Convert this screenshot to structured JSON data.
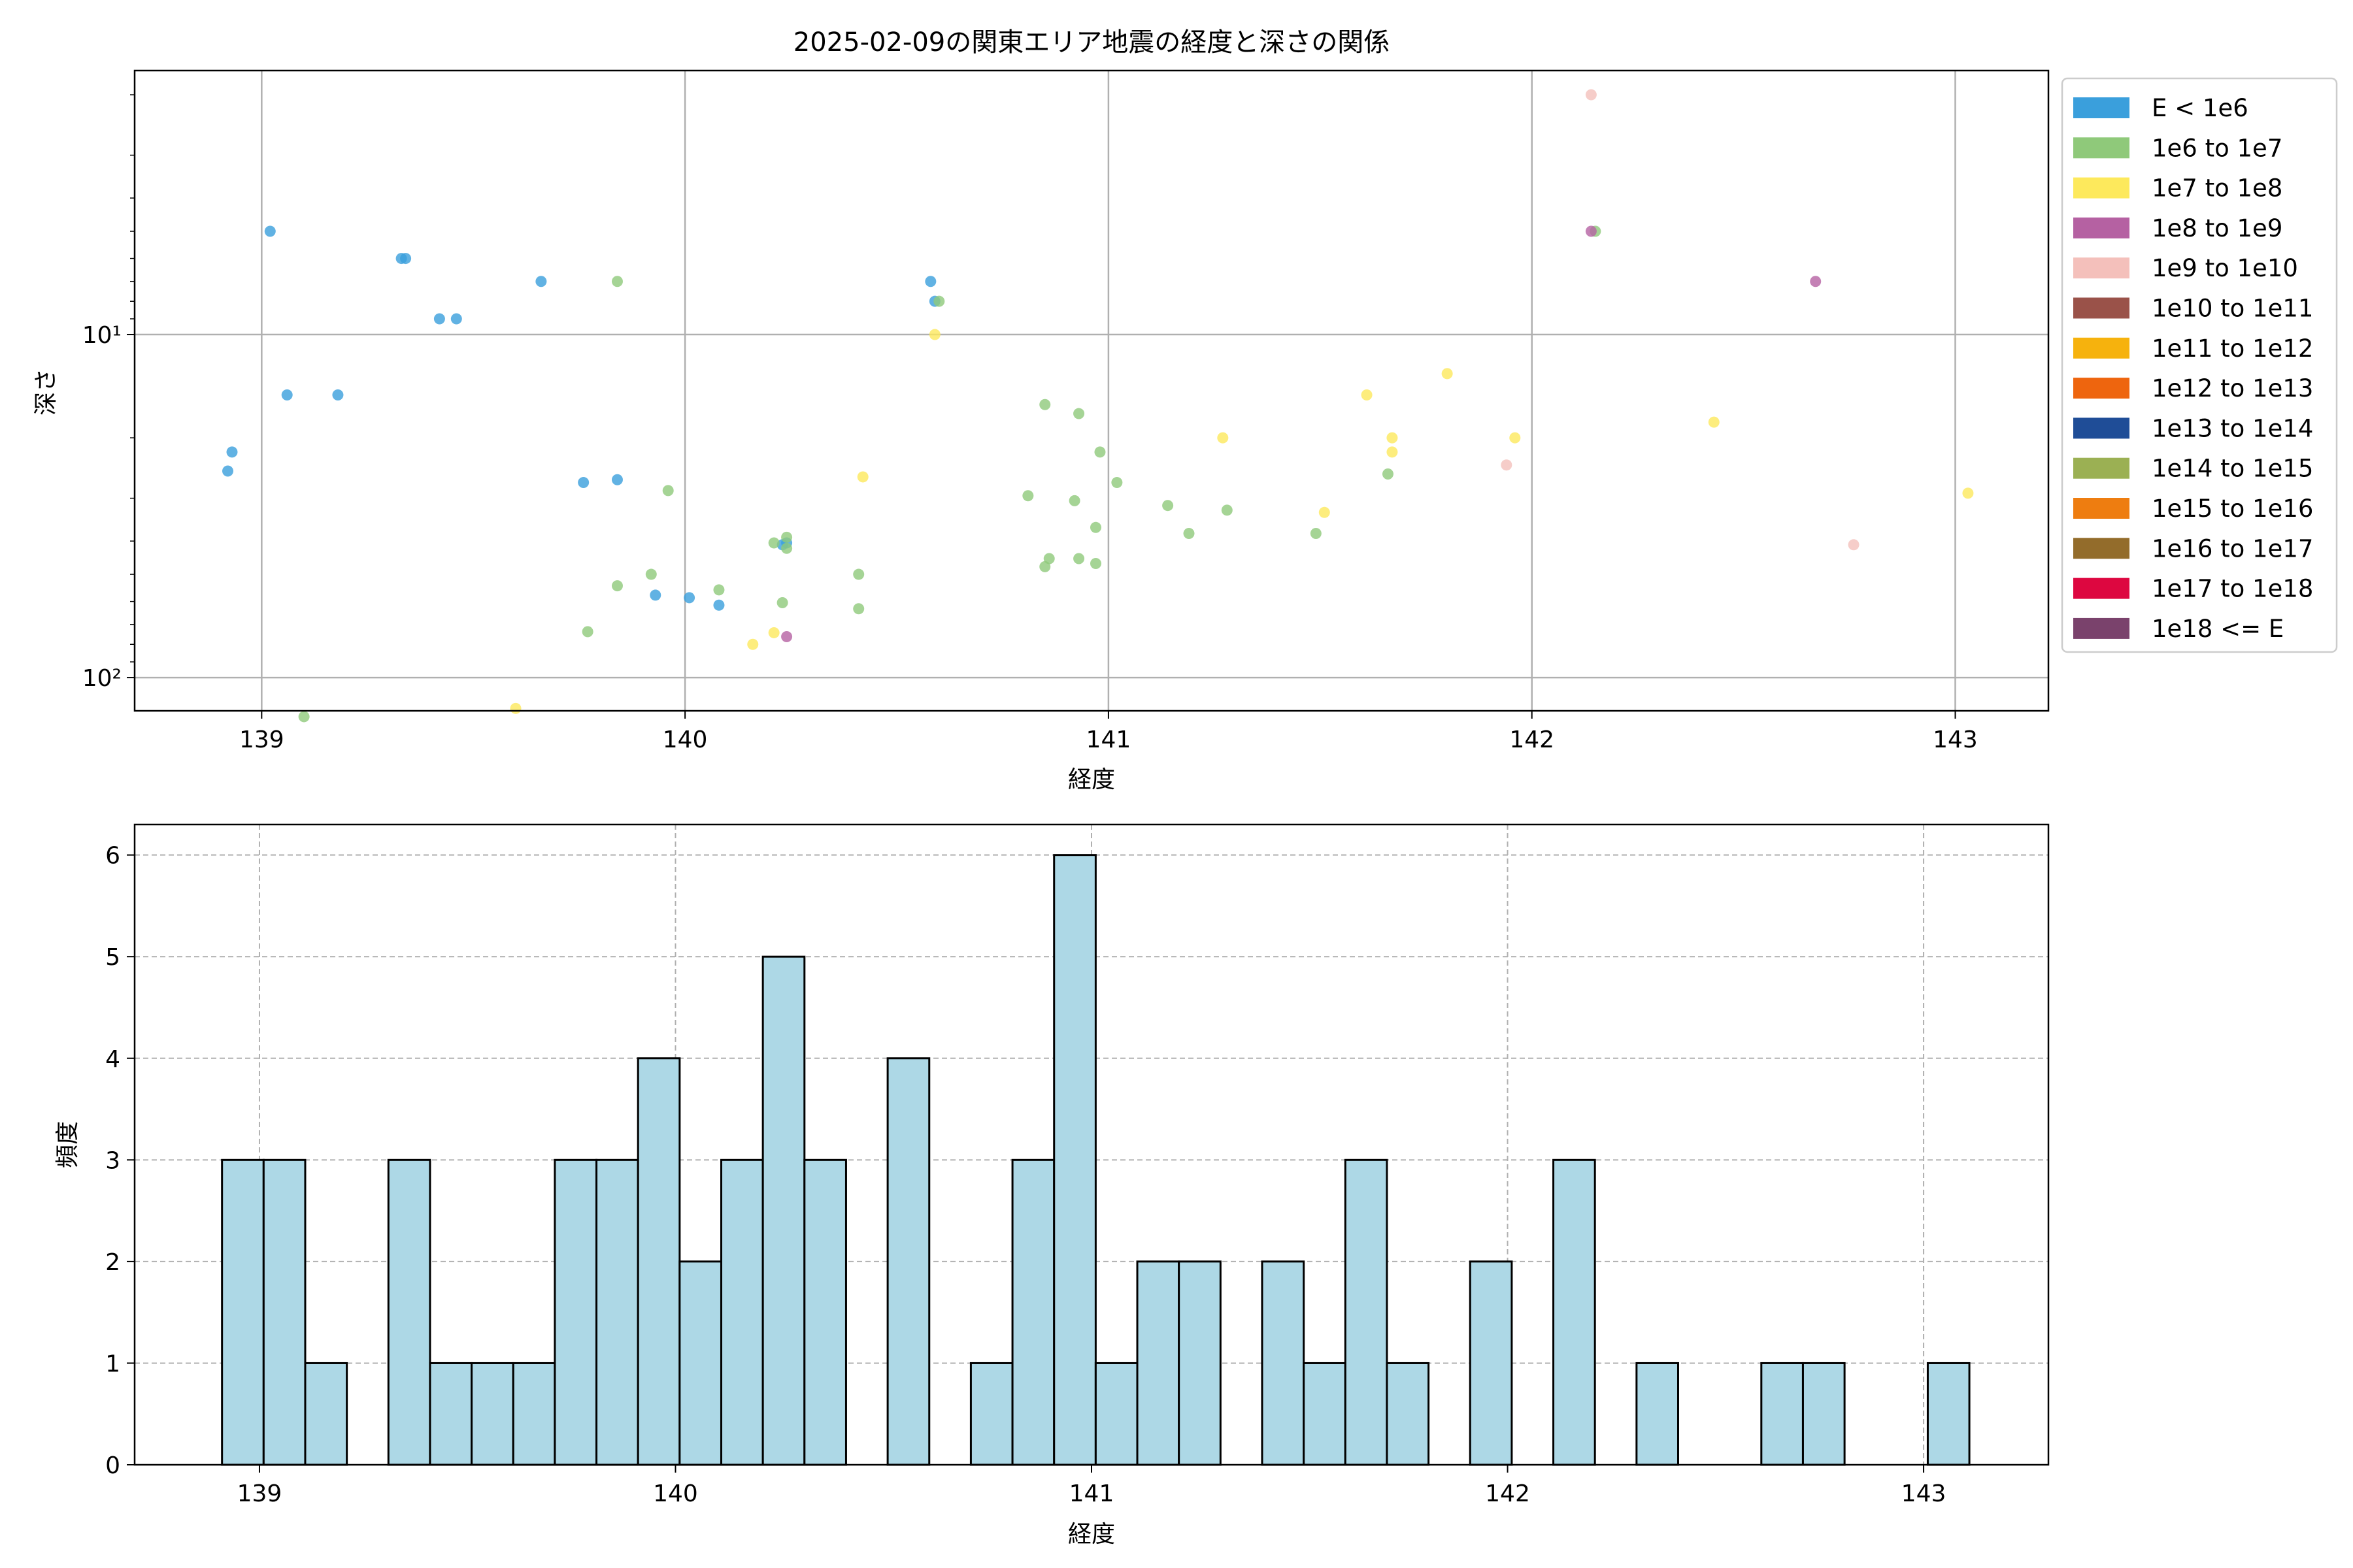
{
  "chart_data": [
    {
      "type": "scatter",
      "title": "2025-02-09の関東エリア地震の経度と深さの関係",
      "xlabel": "経度",
      "ylabel": "深さ",
      "xlim": [
        138.7,
        143.22
      ],
      "ylim": [
        125,
        1.7
      ],
      "yscale": "log",
      "y_inverted": true,
      "x_ticks": [
        139,
        140,
        141,
        142,
        143
      ],
      "y_ticks": [
        {
          "value": 10,
          "label": "10¹"
        },
        {
          "value": 100,
          "label": "10²"
        }
      ],
      "grid": true,
      "legend_position": "outside-right",
      "legend": [
        {
          "label": "E < 1e6",
          "color": "#3a9fdc"
        },
        {
          "label": "1e6 to 1e7",
          "color": "#8fc97a"
        },
        {
          "label": "1e7 to 1e8",
          "color": "#fde95c"
        },
        {
          "label": "1e8 to 1e9",
          "color": "#b561a2"
        },
        {
          "label": "1e9 to 1e10",
          "color": "#f4c0bb"
        },
        {
          "label": "1e10 to 1e11",
          "color": "#9a5249"
        },
        {
          "label": "1e11 to 1e12",
          "color": "#f6b20d"
        },
        {
          "label": "1e12 to 1e13",
          "color": "#ee650e"
        },
        {
          "label": "1e13 to 1e14",
          "color": "#1f4d97"
        },
        {
          "label": "1e14 to 1e15",
          "color": "#9bb053"
        },
        {
          "label": "1e15 to 1e16",
          "color": "#ee7d10"
        },
        {
          "label": "1e16 to 1e17",
          "color": "#936c2b"
        },
        {
          "label": "1e17 to 1e18",
          "color": "#dd0740"
        },
        {
          "label": "1e18 <= E",
          "color": "#7a426c"
        }
      ],
      "series": [
        {
          "name": "E < 1e6",
          "points": [
            [
              139.02,
              5.0
            ],
            [
              139.34,
              6.0
            ],
            [
              139.33,
              6.0
            ],
            [
              139.66,
              7.0
            ],
            [
              139.42,
              9.0
            ],
            [
              139.46,
              9.0
            ],
            [
              139.06,
              15.0
            ],
            [
              139.18,
              15.0
            ],
            [
              138.93,
              22.0
            ],
            [
              138.92,
              25.0
            ],
            [
              139.76,
              27.0
            ],
            [
              139.84,
              26.5
            ],
            [
              140.24,
              40.5
            ],
            [
              140.23,
              41.0
            ],
            [
              139.93,
              57.5
            ],
            [
              140.01,
              58.5
            ],
            [
              140.08,
              61.5
            ],
            [
              140.58,
              7.0
            ],
            [
              140.59,
              8.0
            ]
          ]
        },
        {
          "name": "1e6 to 1e7",
          "points": [
            [
              139.84,
              7.0
            ],
            [
              140.6,
              8.0
            ],
            [
              142.15,
              5.0
            ],
            [
              140.85,
              16.0
            ],
            [
              140.93,
              17.0
            ],
            [
              140.98,
              22.0
            ],
            [
              141.02,
              27.0
            ],
            [
              140.81,
              29.5
            ],
            [
              140.92,
              30.5
            ],
            [
              141.14,
              31.5
            ],
            [
              141.28,
              32.5
            ],
            [
              141.66,
              25.5
            ],
            [
              141.19,
              38.0
            ],
            [
              141.49,
              38.0
            ],
            [
              140.97,
              36.5
            ],
            [
              140.86,
              45.0
            ],
            [
              140.85,
              47.5
            ],
            [
              140.93,
              45.0
            ],
            [
              140.97,
              46.5
            ],
            [
              140.21,
              40.5
            ],
            [
              140.24,
              39.0
            ],
            [
              140.24,
              42.0
            ],
            [
              139.96,
              28.5
            ],
            [
              139.92,
              50.0
            ],
            [
              139.84,
              54.0
            ],
            [
              140.08,
              55.5
            ],
            [
              140.23,
              60.5
            ],
            [
              140.41,
              50.0
            ],
            [
              140.41,
              63.0
            ],
            [
              139.77,
              73.5
            ],
            [
              139.1,
              130.0
            ]
          ]
        },
        {
          "name": "1e7 to 1e8",
          "points": [
            [
              140.59,
              10.0
            ],
            [
              141.8,
              13.0
            ],
            [
              141.61,
              15.0
            ],
            [
              142.43,
              18.0
            ],
            [
              141.27,
              20.0
            ],
            [
              141.67,
              20.0
            ],
            [
              141.96,
              20.0
            ],
            [
              141.67,
              22.0
            ],
            [
              140.42,
              26.0
            ],
            [
              143.03,
              29.0
            ],
            [
              141.51,
              33.0
            ],
            [
              140.16,
              80.0
            ],
            [
              140.21,
              74.0
            ],
            [
              139.6,
              123.0
            ]
          ]
        },
        {
          "name": "1e8 to 1e9",
          "points": [
            [
              142.14,
              5.0
            ],
            [
              142.67,
              7.0
            ],
            [
              140.24,
              76.0
            ]
          ]
        },
        {
          "name": "1e9 to 1e10",
          "points": [
            [
              142.14,
              2.0
            ],
            [
              141.94,
              24.0
            ],
            [
              142.76,
              41.0
            ]
          ]
        }
      ]
    },
    {
      "type": "bar",
      "chart_subtype": "histogram",
      "xlabel": "経度",
      "ylabel": "頻度",
      "xlim": [
        138.7,
        143.3
      ],
      "ylim": [
        0,
        6.3
      ],
      "x_ticks": [
        139,
        140,
        141,
        142,
        143
      ],
      "y_ticks": [
        0,
        1,
        2,
        3,
        4,
        5,
        6
      ],
      "grid": true,
      "bar_color": "#add8e6",
      "edge_color": "#000000",
      "bins": [
        {
          "start": 138.91,
          "end": 139.01,
          "count": 3
        },
        {
          "start": 139.01,
          "end": 139.11,
          "count": 3
        },
        {
          "start": 139.11,
          "end": 139.21,
          "count": 1
        },
        {
          "start": 139.31,
          "end": 139.41,
          "count": 3
        },
        {
          "start": 139.41,
          "end": 139.51,
          "count": 1
        },
        {
          "start": 139.51,
          "end": 139.61,
          "count": 1
        },
        {
          "start": 139.61,
          "end": 139.71,
          "count": 1
        },
        {
          "start": 139.71,
          "end": 139.81,
          "count": 3
        },
        {
          "start": 139.81,
          "end": 139.91,
          "count": 3
        },
        {
          "start": 139.91,
          "end": 140.01,
          "count": 4
        },
        {
          "start": 140.01,
          "end": 140.11,
          "count": 2
        },
        {
          "start": 140.11,
          "end": 140.21,
          "count": 3
        },
        {
          "start": 140.21,
          "end": 140.31,
          "count": 5
        },
        {
          "start": 140.31,
          "end": 140.41,
          "count": 3
        },
        {
          "start": 140.51,
          "end": 140.61,
          "count": 4
        },
        {
          "start": 140.71,
          "end": 140.81,
          "count": 1
        },
        {
          "start": 140.81,
          "end": 140.91,
          "count": 3
        },
        {
          "start": 140.91,
          "end": 141.01,
          "count": 6
        },
        {
          "start": 141.01,
          "end": 141.11,
          "count": 1
        },
        {
          "start": 141.11,
          "end": 141.21,
          "count": 2
        },
        {
          "start": 141.21,
          "end": 141.31,
          "count": 2
        },
        {
          "start": 141.41,
          "end": 141.51,
          "count": 2
        },
        {
          "start": 141.51,
          "end": 141.61,
          "count": 1
        },
        {
          "start": 141.61,
          "end": 141.71,
          "count": 3
        },
        {
          "start": 141.71,
          "end": 141.81,
          "count": 1
        },
        {
          "start": 141.91,
          "end": 142.01,
          "count": 2
        },
        {
          "start": 142.11,
          "end": 142.21,
          "count": 3
        },
        {
          "start": 142.31,
          "end": 142.41,
          "count": 1
        },
        {
          "start": 142.61,
          "end": 142.71,
          "count": 1
        },
        {
          "start": 142.71,
          "end": 142.81,
          "count": 1
        },
        {
          "start": 143.01,
          "end": 143.11,
          "count": 1
        }
      ]
    }
  ]
}
